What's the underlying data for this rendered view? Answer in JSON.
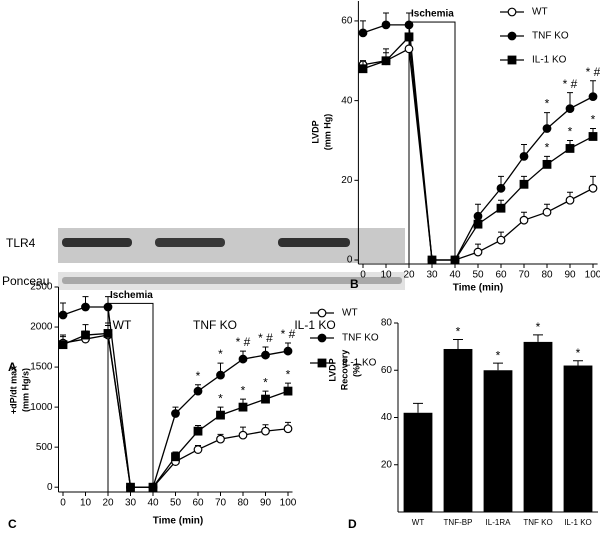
{
  "blot": {
    "panel": "A",
    "row_labels": [
      "TLR4",
      "Ponceau"
    ],
    "lanes": [
      "WT",
      "TNF KO",
      "IL-1 KO"
    ]
  },
  "chart_data": [
    {
      "type": "line",
      "panel": "B",
      "annotation": "Ischemia",
      "y_label": [
        "LVDP",
        "(mm Hg)"
      ],
      "x_label": "Time (min)",
      "x": [
        0,
        10,
        20,
        30,
        40,
        50,
        60,
        70,
        80,
        90,
        100
      ],
      "xlim": [
        -2,
        102
      ],
      "xticks": [
        0,
        10,
        20,
        30,
        40,
        50,
        60,
        70,
        80,
        90,
        100
      ],
      "ylim": [
        -1,
        65
      ],
      "yticks": [
        0,
        20,
        40,
        60
      ],
      "series": [
        {
          "name": "WT",
          "marker": "open-circle",
          "color": "#000000",
          "values": [
            49,
            50,
            53,
            0,
            0,
            2,
            5,
            10,
            12,
            15,
            18
          ],
          "errors": [
            1,
            2,
            2,
            0,
            0,
            2,
            2,
            2,
            2,
            2,
            3
          ],
          "annotations": [
            null,
            null,
            null,
            null,
            null,
            null,
            null,
            null,
            null,
            null,
            null
          ]
        },
        {
          "name": "TNF KO",
          "marker": "circle",
          "color": "#000000",
          "values": [
            57,
            59,
            59,
            0,
            0,
            11,
            18,
            26,
            33,
            38,
            41
          ],
          "errors": [
            3,
            3,
            3,
            0,
            0,
            3,
            3,
            3,
            4,
            4,
            4
          ],
          "annotations": [
            null,
            null,
            null,
            null,
            null,
            null,
            null,
            null,
            "*",
            "* #",
            "* #"
          ]
        },
        {
          "name": "IL-1 KO",
          "marker": "square",
          "color": "#000000",
          "values": [
            48,
            50,
            56,
            0,
            0,
            9,
            13,
            19,
            24,
            28,
            31
          ],
          "errors": [
            2,
            3,
            3,
            0,
            0,
            2,
            2,
            2,
            2,
            2,
            2
          ],
          "annotations": [
            null,
            null,
            null,
            null,
            null,
            null,
            null,
            null,
            "*",
            "*",
            "*"
          ]
        }
      ]
    },
    {
      "type": "line",
      "panel": "C",
      "annotation": "Ischemia",
      "y_label": [
        "+dP/dt max",
        "(mm Hg/s)"
      ],
      "x_label": "Time (min)",
      "x": [
        0,
        10,
        20,
        30,
        40,
        50,
        60,
        70,
        80,
        90,
        100
      ],
      "xlim": [
        -2,
        102
      ],
      "xticks": [
        0,
        10,
        20,
        30,
        40,
        50,
        60,
        70,
        80,
        90,
        100
      ],
      "ylim": [
        -60,
        2500
      ],
      "yticks": [
        0,
        500,
        1000,
        1500,
        2000,
        2500
      ],
      "series": [
        {
          "name": "WT",
          "marker": "open-circle",
          "color": "#000000",
          "values": [
            1800,
            1850,
            1900,
            0,
            0,
            320,
            470,
            600,
            650,
            700,
            730
          ],
          "errors": [
            80,
            100,
            120,
            0,
            0,
            50,
            50,
            60,
            100,
            80,
            80
          ],
          "annotations": [
            null,
            null,
            null,
            null,
            null,
            null,
            null,
            null,
            null,
            null,
            null
          ]
        },
        {
          "name": "TNF KO",
          "marker": "circle",
          "color": "#000000",
          "values": [
            2150,
            2250,
            2250,
            0,
            0,
            920,
            1200,
            1400,
            1600,
            1650,
            1700
          ],
          "errors": [
            150,
            130,
            130,
            0,
            0,
            80,
            80,
            150,
            100,
            100,
            100
          ],
          "annotations": [
            null,
            null,
            null,
            null,
            null,
            null,
            "*",
            "*",
            "* #",
            "* #",
            "* #"
          ]
        },
        {
          "name": "IL-1 KO",
          "marker": "square",
          "color": "#000000",
          "values": [
            1780,
            1900,
            1920,
            0,
            0,
            380,
            700,
            900,
            1000,
            1100,
            1200
          ],
          "errors": [
            120,
            130,
            130,
            0,
            0,
            60,
            70,
            100,
            100,
            100,
            100
          ],
          "annotations": [
            null,
            null,
            null,
            null,
            null,
            null,
            null,
            "*",
            "*",
            "*",
            "*"
          ]
        }
      ]
    },
    {
      "type": "bar",
      "panel": "D",
      "y_label": [
        "LVDP",
        "Recovery",
        "(%)"
      ],
      "categories": [
        "WT",
        "TNF-BP",
        "IL-1RA",
        "TNF KO",
        "IL-1 KO"
      ],
      "values": [
        42,
        69,
        60,
        72,
        62
      ],
      "errors": [
        4,
        4,
        3,
        3,
        2
      ],
      "annotations": [
        null,
        "*",
        "*",
        "*",
        "*"
      ],
      "color": "#000000",
      "ylim": [
        0,
        80
      ],
      "yticks": [
        20,
        40,
        60,
        80
      ]
    }
  ]
}
